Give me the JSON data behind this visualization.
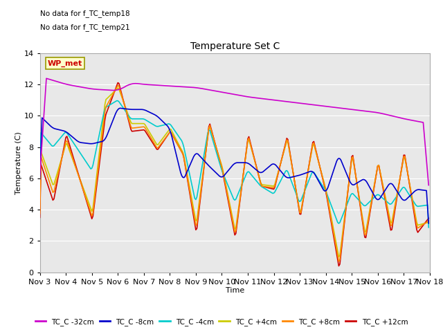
{
  "title": "Temperature Set C",
  "xlabel": "Time",
  "ylabel": "Temperature (C)",
  "ylim": [
    0,
    14
  ],
  "no_data_text": [
    "No data for f_TC_temp18",
    "No data for f_TC_temp21"
  ],
  "wp_met_label": "WP_met",
  "wp_met_color": "#cc0000",
  "wp_met_bg": "#ffffcc",
  "wp_met_border": "#999900",
  "xtick_labels": [
    "Nov 3",
    "Nov 4",
    "Nov 5",
    "Nov 6",
    "Nov 7",
    "Nov 8",
    "Nov 9",
    "Nov 10",
    "Nov 11",
    "Nov 12",
    "Nov 13",
    "Nov 14",
    "Nov 15",
    "Nov 16",
    "Nov 17",
    "Nov 18"
  ],
  "legend_entries": [
    "TC_C -32cm",
    "TC_C -8cm",
    "TC_C -4cm",
    "TC_C +4cm",
    "TC_C +8cm",
    "TC_C +12cm"
  ],
  "colors": {
    "TC_C_-32cm": "#cc00cc",
    "TC_C_-8cm": "#0000cc",
    "TC_C_-4cm": "#00cccc",
    "TC_C_+4cm": "#cccc00",
    "TC_C_+8cm": "#ff8800",
    "TC_C_+12cm": "#cc0000"
  },
  "background_color": "#e8e8e8",
  "grid_color": "#ffffff",
  "yticks": [
    0,
    2,
    4,
    6,
    8,
    10,
    12,
    14
  ]
}
